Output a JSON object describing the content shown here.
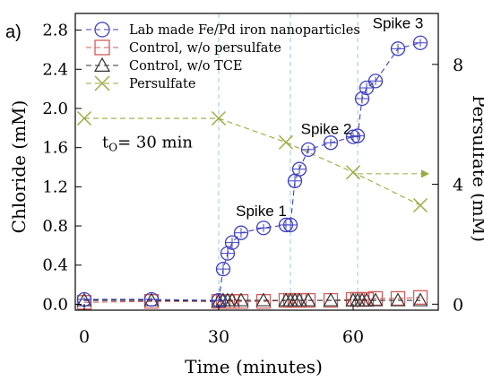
{
  "chart_data": {
    "type": "scatter",
    "panel_label": "a)",
    "xlabel": "Time (minutes)",
    "ylabel": "Chloride (mM)",
    "y2label": "Persulfate (mM)",
    "xlim": [
      -2,
      79
    ],
    "ylim": [
      -0.06,
      2.97
    ],
    "y2lim": [
      -0.2,
      9.7
    ],
    "xticks": [
      0,
      30,
      60
    ],
    "yticks": [
      0.0,
      0.4,
      0.8,
      1.2,
      1.6,
      2.0,
      2.4,
      2.8
    ],
    "ytick_labels": [
      "0.0",
      "0.4",
      "0.8",
      "1.2",
      "1.6",
      "2.0",
      "2.4",
      "2.8"
    ],
    "y2ticks": [
      0,
      4,
      8
    ],
    "grid": false,
    "legend_position": "top-left",
    "vlines": [
      30,
      46,
      61
    ],
    "annotations": [
      {
        "text": "Spike 1",
        "x": 39.5,
        "y": 0.9
      },
      {
        "text": "Spike 2",
        "x": 54,
        "y": 1.74
      },
      {
        "text": "Spike 3",
        "x": 70,
        "y": 2.82
      },
      {
        "text": "t",
        "sub": "O",
        "rest": "= 30 min",
        "x": 4,
        "y": 1.6
      }
    ],
    "series": [
      {
        "name": "Lab made Fe/Pd iron nanoparticles",
        "marker": "circle",
        "color": "#3f3fc0",
        "axis": "left",
        "line": "dashed",
        "x": [
          0,
          15,
          30,
          31,
          32,
          33,
          35,
          40,
          45,
          46,
          47,
          48,
          50,
          55,
          60,
          61,
          62,
          63,
          65,
          70,
          75
        ],
        "y": [
          0.05,
          0.05,
          0.04,
          0.36,
          0.52,
          0.63,
          0.73,
          0.78,
          0.81,
          0.81,
          1.26,
          1.38,
          1.58,
          1.65,
          1.71,
          1.72,
          2.1,
          2.21,
          2.28,
          2.61,
          2.67
        ],
        "err": [
          0.02,
          0.02,
          0.02,
          0.06,
          0.06,
          0.05,
          0.05,
          0.04,
          0.04,
          0.04,
          0.06,
          0.05,
          0.04,
          0.04,
          0.04,
          0.04,
          0.05,
          0.05,
          0.04,
          0.05,
          0.04
        ]
      },
      {
        "name": "Control, w/o persulfate",
        "marker": "square",
        "color": "#d45a5a",
        "axis": "left",
        "line": "dashed",
        "x": [
          0,
          15,
          30,
          31,
          32,
          33,
          35,
          40,
          45,
          46,
          47,
          48,
          50,
          55,
          60,
          61,
          62,
          63,
          65,
          70,
          75
        ],
        "y": [
          0.02,
          0.03,
          0.03,
          0.03,
          0.03,
          0.03,
          0.03,
          0.03,
          0.04,
          0.04,
          0.04,
          0.04,
          0.04,
          0.04,
          0.05,
          0.05,
          0.05,
          0.05,
          0.06,
          0.06,
          0.07
        ]
      },
      {
        "name": "Control, w/o TCE",
        "marker": "triangle",
        "color": "#333333",
        "axis": "left",
        "line": "dashed",
        "x": [
          0,
          15,
          30,
          31,
          32,
          33,
          35,
          40,
          45,
          46,
          47,
          48,
          50,
          55,
          60,
          61,
          62,
          63,
          65,
          70,
          75
        ],
        "y": [
          0.04,
          0.04,
          0.03,
          0.04,
          0.04,
          0.04,
          0.04,
          0.04,
          0.04,
          0.04,
          0.04,
          0.04,
          0.04,
          0.04,
          0.04,
          0.04,
          0.04,
          0.04,
          0.04,
          0.04,
          0.04
        ]
      },
      {
        "name": "Persulfate",
        "marker": "x",
        "color": "#9aaa3c",
        "axis": "right",
        "line": "dashed",
        "x": [
          0,
          30,
          45,
          60,
          75
        ],
        "y": [
          6.2,
          6.2,
          5.4,
          4.4,
          3.3
        ]
      }
    ],
    "arrows": [
      {
        "from": [
          61,
          4.35
        ],
        "to": [
          77,
          4.35
        ],
        "axis": "right"
      }
    ]
  }
}
